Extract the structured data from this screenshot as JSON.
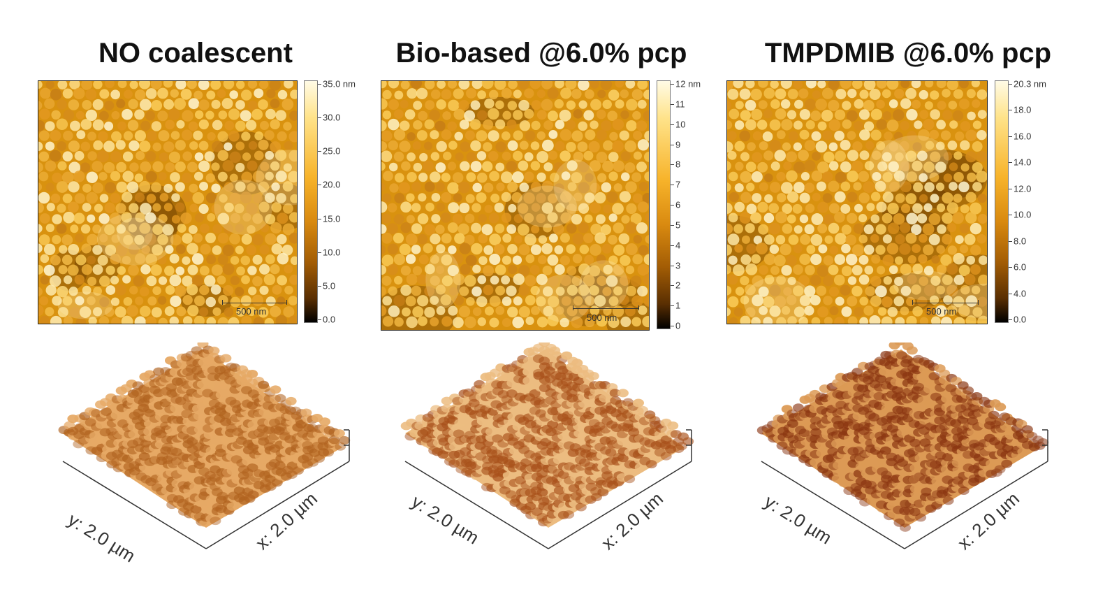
{
  "panels": [
    {
      "title": "NO coalescent",
      "colorbar_ticks": [
        "35.0 nm",
        "30.0",
        "25.0",
        "20.0",
        "15.0",
        "10.0",
        "5.0",
        "0.0"
      ],
      "scale_bar": "500 nm",
      "x_axis": "x: 2.0 µm",
      "y_axis": "y: 2.0 µm"
    },
    {
      "title": "Bio-based @6.0% pcp",
      "colorbar_ticks": [
        "12 nm",
        "11",
        "10",
        "9",
        "8",
        "7",
        "6",
        "5",
        "4",
        "3",
        "2",
        "1",
        "0"
      ],
      "scale_bar": "500 nm",
      "x_axis": "x: 2.0 µm",
      "y_axis": "y: 2.0 µm"
    },
    {
      "title": "TMPDMIB @6.0% pcp",
      "colorbar_ticks": [
        "20.3 nm",
        "18.0",
        "16.0",
        "14.0",
        "12.0",
        "10.0",
        "8.0",
        "6.0",
        "4.0",
        "0.0"
      ],
      "scale_bar": "500 nm",
      "x_axis": "x: 2.0 µm",
      "y_axis": "y: 2.0 µm"
    }
  ],
  "colors": {
    "afm_light": "#fff3c4",
    "afm_mid": "#e8a21f",
    "afm_dark": "#6b3a05"
  }
}
